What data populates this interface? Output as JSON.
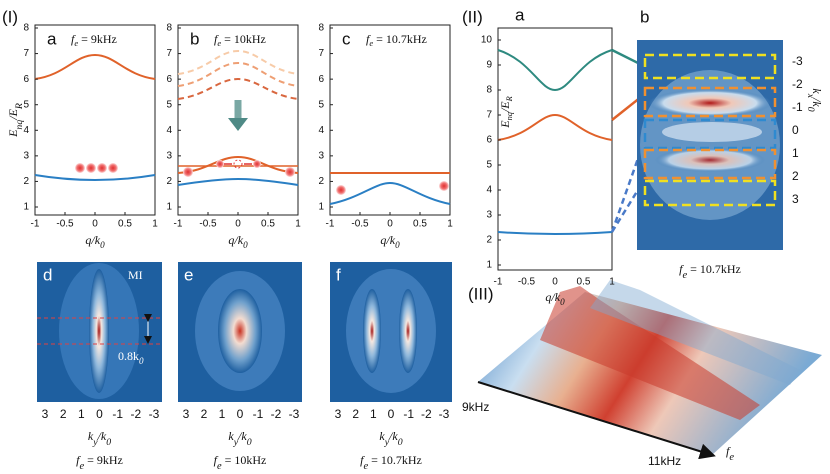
{
  "sections": [
    "(I)",
    "(II)",
    "(III)"
  ],
  "panel_I": {
    "a": {
      "letter": "a",
      "fe": {
        "sym": "f",
        "sub": "e",
        "text": " = 9kHz"
      }
    },
    "b": {
      "letter": "b",
      "fe": {
        "sym": "f",
        "sub": "e",
        "text": " = 10kHz"
      }
    },
    "c": {
      "letter": "c",
      "fe": {
        "sym": "f",
        "sub": "e",
        "text": " = 10.7kHz"
      }
    },
    "y_label": {
      "main": "E",
      "sub1": "nq",
      "sep": "/E",
      "sub2": "R"
    },
    "y_ticks": [
      "1",
      "2",
      "3",
      "4",
      "5",
      "6",
      "7",
      "8"
    ],
    "x_ticks": [
      "-1",
      "-0.5",
      "0",
      "0.5",
      "1"
    ],
    "x_label": {
      "main": "q/k",
      "sub": "0"
    },
    "d": {
      "letter": "d",
      "tag": "MI",
      "width": {
        "main": "0.8k",
        "sub": "0"
      },
      "fe": {
        "sym": "f",
        "sub": "e",
        "text": " = 9kHz"
      }
    },
    "e": {
      "letter": "e",
      "fe": {
        "sym": "f",
        "sub": "e",
        "text": " = 10kHz"
      }
    },
    "f": {
      "letter": "f",
      "fe": {
        "sym": "f",
        "sub": "e",
        "text": " = 10.7kHz"
      }
    },
    "ky_ticks": [
      "3",
      "2",
      "1",
      "0",
      "-1",
      "-2",
      "-3"
    ],
    "ky_label": {
      "main": "k",
      "sub1": "y",
      "sep": "/k",
      "sub2": "0"
    }
  },
  "panel_II": {
    "a": {
      "letter": "a",
      "y_ticks": [
        "1",
        "2",
        "3",
        "4",
        "5",
        "6",
        "7",
        "8",
        "9",
        "10"
      ],
      "x_ticks": [
        "-1",
        "-0.5",
        "0",
        "0.5",
        "1"
      ]
    },
    "b": {
      "letter": "b",
      "kx_ticks": [
        "-3",
        "-2",
        "-1",
        "0",
        "1",
        "2",
        "3"
      ],
      "kx_label": {
        "main": "k",
        "sub1": "x",
        "sep": "/k",
        "sub2": "0"
      },
      "fe": {
        "sym": "f",
        "sub": "e",
        "text": " = 10.7kHz"
      }
    }
  },
  "panel_III": {
    "start": "9kHz",
    "end": "11kHz",
    "axis": {
      "sym": "f",
      "sub": "e"
    }
  }
}
